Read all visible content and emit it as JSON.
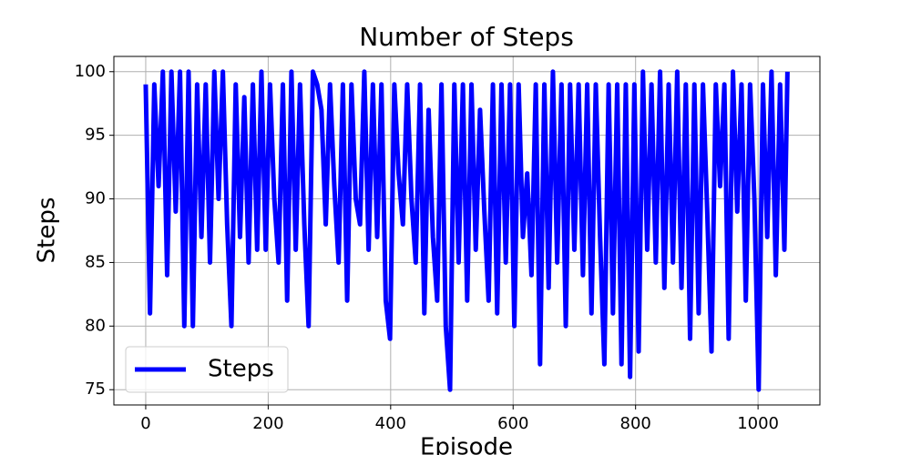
{
  "chart_data": {
    "type": "line",
    "title": "Number of Steps",
    "x_label": "Episode",
    "y_label": "Steps",
    "x": [
      0,
      7,
      14,
      21,
      28,
      35,
      42,
      49,
      56,
      63,
      70,
      77,
      84,
      91,
      98,
      105,
      112,
      119,
      126,
      133,
      140,
      147,
      154,
      161,
      168,
      175,
      182,
      189,
      196,
      203,
      210,
      217,
      224,
      231,
      238,
      245,
      252,
      259,
      266,
      273,
      280,
      287,
      294,
      301,
      308,
      315,
      322,
      329,
      336,
      343,
      350,
      357,
      364,
      371,
      378,
      385,
      392,
      399,
      406,
      413,
      420,
      427,
      434,
      441,
      448,
      455,
      462,
      469,
      476,
      483,
      490,
      497,
      504,
      511,
      518,
      525,
      532,
      539,
      546,
      553,
      560,
      567,
      574,
      581,
      588,
      595,
      602,
      609,
      616,
      623,
      630,
      637,
      644,
      651,
      658,
      665,
      672,
      679,
      686,
      693,
      700,
      707,
      714,
      721,
      728,
      735,
      742,
      749,
      756,
      763,
      770,
      777,
      784,
      791,
      798,
      805,
      812,
      819,
      826,
      833,
      840,
      847,
      854,
      861,
      868,
      875,
      882,
      889,
      896,
      903,
      910,
      917,
      924,
      931,
      938,
      945,
      952,
      959,
      966,
      973,
      980,
      987,
      994,
      1001,
      1008,
      1015,
      1022,
      1029,
      1036,
      1043,
      1048
    ],
    "series": [
      {
        "name": "Steps",
        "color": "#0000ff",
        "values": [
          99,
          81,
          99,
          91,
          100,
          84,
          100,
          89,
          100,
          80,
          100,
          80,
          99,
          87,
          99,
          85,
          100,
          90,
          100,
          88,
          80,
          99,
          87,
          98,
          85,
          99,
          86,
          100,
          86,
          99,
          90,
          85,
          99,
          82,
          100,
          86,
          99,
          88,
          80,
          100,
          99,
          97,
          88,
          99,
          91,
          85,
          99,
          82,
          99,
          90,
          88,
          100,
          86,
          99,
          87,
          99,
          82,
          79,
          99,
          92,
          88,
          99,
          90,
          85,
          99,
          81,
          97,
          87,
          82,
          99,
          80,
          75,
          99,
          85,
          99,
          82,
          99,
          86,
          97,
          89,
          82,
          99,
          81,
          99,
          85,
          99,
          80,
          99,
          87,
          92,
          84,
          99,
          77,
          99,
          83,
          100,
          85,
          99,
          80,
          99,
          86,
          99,
          84,
          99,
          81,
          99,
          87,
          77,
          99,
          81,
          99,
          77,
          99,
          76,
          99,
          78,
          100,
          86,
          99,
          85,
          100,
          83,
          99,
          85,
          100,
          83,
          99,
          79,
          99,
          81,
          99,
          89,
          78,
          99,
          91,
          99,
          79,
          100,
          89,
          99,
          82,
          99,
          90,
          75,
          99,
          87,
          100,
          84,
          99,
          86,
          100
        ]
      }
    ],
    "xlim": [
      -52,
      1101
    ],
    "ylim": [
      73.8,
      101.2
    ],
    "xticks": [
      0,
      200,
      400,
      600,
      800,
      1000
    ],
    "yticks": [
      75,
      80,
      85,
      90,
      95,
      100
    ],
    "grid": true,
    "legend_position": "lower left"
  }
}
